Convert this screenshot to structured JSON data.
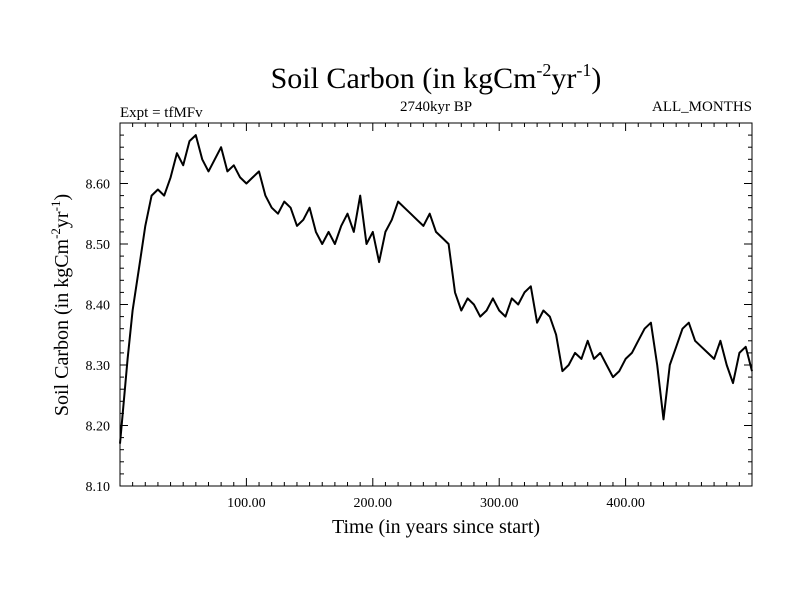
{
  "chart_data": {
    "type": "line",
    "title": "Soil Carbon (in kgCm",
    "title_sup1": "-2",
    "title_mid": "yr",
    "title_sup2": "-1",
    "title_end": ")",
    "subtitle_left": "Expt = tfMFv",
    "subtitle_center": "2740kyr BP",
    "subtitle_right": "ALL_MONTHS",
    "xlabel": "Time (in years since start)",
    "ylabel": "Soil Carbon (in kgCm",
    "ylabel_sup1": "-2",
    "ylabel_mid": "yr",
    "ylabel_sup2": "-1",
    "ylabel_end": ")",
    "xlim": [
      0,
      500
    ],
    "ylim": [
      8.1,
      8.7
    ],
    "xticks": [
      100,
      200,
      300,
      400
    ],
    "xtick_labels": [
      "100.00",
      "200.00",
      "300.00",
      "400.00"
    ],
    "yticks": [
      8.1,
      8.2,
      8.3,
      8.4,
      8.5,
      8.6
    ],
    "ytick_labels": [
      "8.10",
      "8.20",
      "8.30",
      "8.40",
      "8.50",
      "8.60"
    ],
    "series": [
      {
        "name": "Soil Carbon",
        "color": "#000000",
        "x": [
          0,
          3,
          6,
          10,
          15,
          20,
          25,
          30,
          35,
          40,
          45,
          50,
          55,
          60,
          65,
          70,
          75,
          80,
          85,
          90,
          95,
          100,
          105,
          110,
          115,
          120,
          125,
          130,
          135,
          140,
          145,
          150,
          155,
          160,
          165,
          170,
          175,
          180,
          185,
          190,
          195,
          200,
          205,
          210,
          215,
          220,
          225,
          230,
          235,
          240,
          245,
          250,
          255,
          260,
          265,
          270,
          275,
          280,
          285,
          290,
          295,
          300,
          305,
          310,
          315,
          320,
          325,
          330,
          335,
          340,
          345,
          350,
          355,
          360,
          365,
          370,
          375,
          380,
          385,
          390,
          395,
          400,
          405,
          410,
          415,
          420,
          425,
          430,
          435,
          440,
          445,
          450,
          455,
          460,
          465,
          470,
          475,
          480,
          485,
          490,
          495,
          500
        ],
        "values": [
          8.17,
          8.24,
          8.31,
          8.39,
          8.46,
          8.53,
          8.58,
          8.59,
          8.58,
          8.61,
          8.65,
          8.63,
          8.67,
          8.68,
          8.64,
          8.62,
          8.64,
          8.66,
          8.62,
          8.63,
          8.61,
          8.6,
          8.61,
          8.62,
          8.58,
          8.56,
          8.55,
          8.57,
          8.56,
          8.53,
          8.54,
          8.56,
          8.52,
          8.5,
          8.52,
          8.5,
          8.53,
          8.55,
          8.52,
          8.58,
          8.5,
          8.52,
          8.47,
          8.52,
          8.54,
          8.57,
          8.56,
          8.55,
          8.54,
          8.53,
          8.55,
          8.52,
          8.51,
          8.5,
          8.42,
          8.39,
          8.41,
          8.4,
          8.38,
          8.39,
          8.41,
          8.39,
          8.38,
          8.41,
          8.4,
          8.42,
          8.43,
          8.37,
          8.39,
          8.38,
          8.35,
          8.29,
          8.3,
          8.32,
          8.31,
          8.34,
          8.31,
          8.32,
          8.3,
          8.28,
          8.29,
          8.31,
          8.32,
          8.34,
          8.36,
          8.37,
          8.3,
          8.21,
          8.3,
          8.33,
          8.36,
          8.37,
          8.34,
          8.33,
          8.32,
          8.31,
          8.34,
          8.3,
          8.27,
          8.32,
          8.33,
          8.29
        ]
      }
    ]
  }
}
